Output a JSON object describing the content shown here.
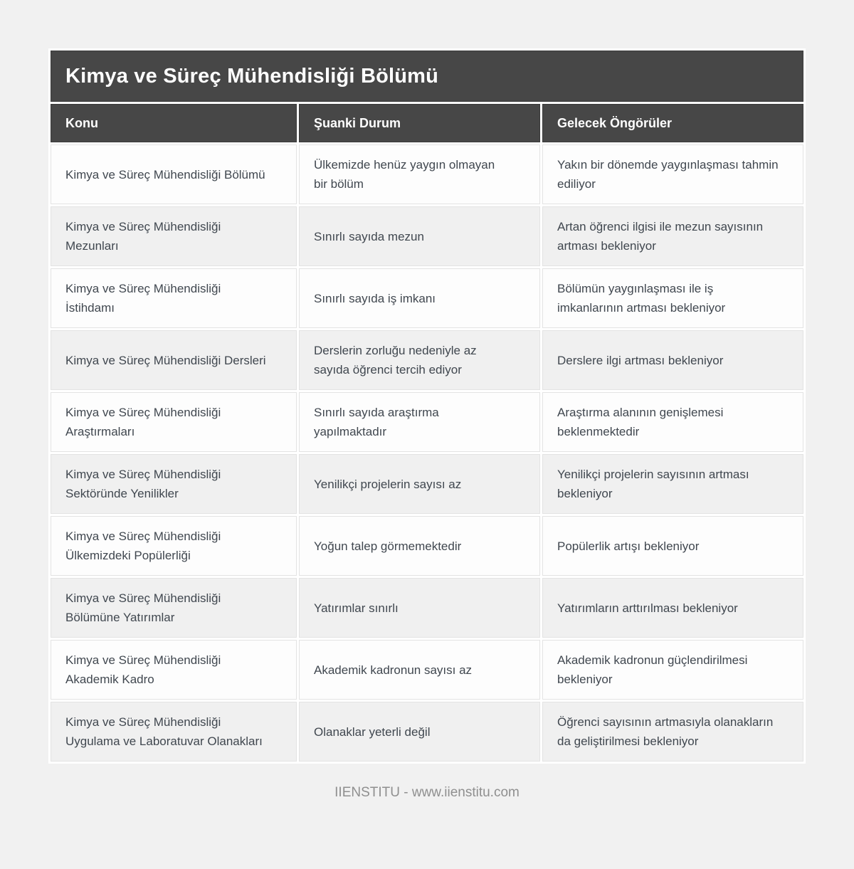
{
  "page": {
    "title": "Kimya ve Süreç Mühendisliği Bölümü",
    "footer": "IIENSTITU - www.iienstitu.com"
  },
  "table": {
    "columns": [
      "Konu",
      "Şuanki Durum",
      "Gelecek Öngörüler"
    ],
    "rows": [
      [
        "Kimya ve Süreç Mühendisliği Bölümü",
        "Ülkemizde henüz yaygın olmayan bir bölüm",
        "Yakın bir dönemde yaygınlaşması tahmin ediliyor"
      ],
      [
        "Kimya ve Süreç Mühendisliği Mezunları",
        "Sınırlı sayıda mezun",
        "Artan öğrenci ilgisi ile mezun sayısının artması bekleniyor"
      ],
      [
        "Kimya ve Süreç Mühendisliği İstihdamı",
        "Sınırlı sayıda iş imkanı",
        "Bölümün yaygınlaşması ile iş imkanlarının artması bekleniyor"
      ],
      [
        "Kimya ve Süreç Mühendisliği Dersleri",
        "Derslerin zorluğu nedeniyle az sayıda öğrenci tercih ediyor",
        "Derslere ilgi artması bekleniyor"
      ],
      [
        "Kimya ve Süreç Mühendisliği Araştırmaları",
        "Sınırlı sayıda araştırma yapılmaktadır",
        "Araştırma alanının genişlemesi beklenmektedir"
      ],
      [
        "Kimya ve Süreç Mühendisliği Sektöründe Yenilikler",
        "Yenilikçi projelerin sayısı az",
        "Yenilikçi projelerin sayısının artması bekleniyor"
      ],
      [
        "Kimya ve Süreç Mühendisliği Ülkemizdeki Popülerliği",
        "Yoğun talep görmemektedir",
        "Popülerlik artışı bekleniyor"
      ],
      [
        "Kimya ve Süreç Mühendisliği Bölümüne Yatırımlar",
        "Yatırımlar sınırlı",
        "Yatırımların arttırılması bekleniyor"
      ],
      [
        "Kimya ve Süreç Mühendisliği Akademik Kadro",
        "Akademik kadronun sayısı az",
        "Akademik kadronun güçlendirilmesi bekleniyor"
      ],
      [
        "Kimya ve Süreç Mühendisliği Uygulama ve Laboratuvar Olanakları",
        "Olanaklar yeterli değil",
        "Öğrenci sayısının artmasıyla olanakların da geliştirilmesi bekleniyor"
      ]
    ]
  },
  "colors": {
    "page_bg": "#f1f1f1",
    "table_gap": "#ffffff",
    "header_bg": "#474747",
    "header_text": "#ffffff",
    "row_bg": "#fdfdfd",
    "row_alt_bg": "#f0f0f0",
    "cell_text": "#40474f",
    "footer_text": "#8f8f8f"
  }
}
